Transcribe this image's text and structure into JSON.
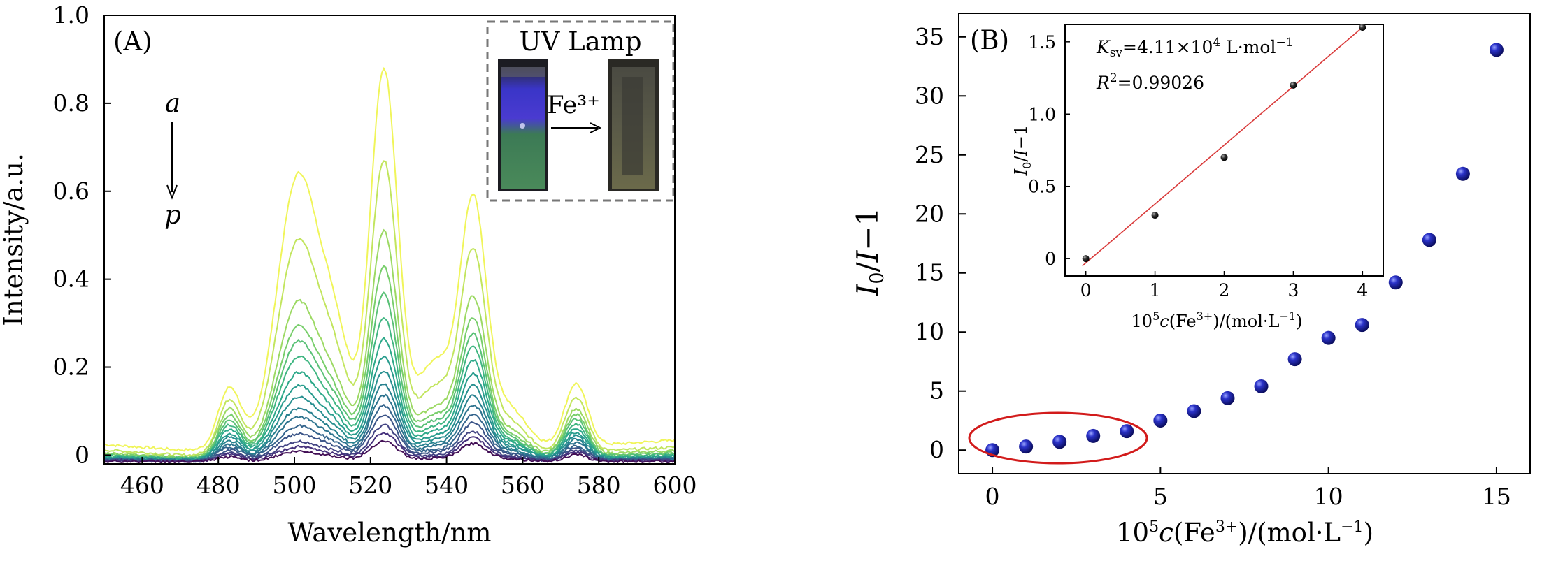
{
  "chart_data": [
    {
      "type": "line",
      "panel_label": "(A)",
      "xlabel": "Wavelength/nm",
      "ylabel": "Intensity/a.u.",
      "xlim": [
        450,
        600
      ],
      "ylim": [
        -0.02,
        1.0
      ],
      "x_ticks": [
        "460",
        "480",
        "500",
        "520",
        "540",
        "560",
        "580",
        "600"
      ],
      "x_tick_values": [
        460,
        480,
        500,
        520,
        540,
        560,
        580,
        600
      ],
      "y_ticks": [
        "0",
        "0.2",
        "0.4",
        "0.6",
        "0.8",
        "1.0"
      ],
      "y_tick_values": [
        0,
        0.2,
        0.4,
        0.6,
        0.8,
        1.0
      ],
      "series_order_label_top": "a",
      "series_order_label_bottom": "p",
      "series_colors": [
        "#f0f55a",
        "#c2e55e",
        "#9cd963",
        "#78ce6b",
        "#5ac177",
        "#40b682",
        "#2ea98a",
        "#289c8d",
        "#268f8f",
        "#28818f",
        "#2d738e",
        "#34648c",
        "#3c5588",
        "#434483",
        "#46317c",
        "#430f56"
      ],
      "peak_heights": [
        [
          0.152,
          0.632,
          0.873,
          0.548,
          0.155,
          0.012,
          0.024,
          0.034
        ],
        [
          0.125,
          0.485,
          0.665,
          0.435,
          0.125,
          0.0,
          0.012,
          0.018
        ],
        [
          0.105,
          0.345,
          0.505,
          0.335,
          0.1,
          -0.004,
          0.005,
          0.01
        ],
        [
          0.09,
          0.29,
          0.425,
          0.29,
          0.088,
          -0.006,
          0.002,
          0.006
        ],
        [
          0.078,
          0.255,
          0.365,
          0.255,
          0.078,
          -0.007,
          0.0,
          0.003
        ],
        [
          0.068,
          0.22,
          0.31,
          0.228,
          0.068,
          -0.008,
          -0.002,
          0.0
        ],
        [
          0.058,
          0.185,
          0.262,
          0.2,
          0.058,
          -0.009,
          -0.004,
          -0.002
        ],
        [
          0.048,
          0.155,
          0.222,
          0.172,
          0.05,
          -0.01,
          -0.006,
          -0.004
        ],
        [
          0.04,
          0.13,
          0.19,
          0.148,
          0.042,
          -0.011,
          -0.007,
          -0.006
        ],
        [
          0.032,
          0.105,
          0.16,
          0.125,
          0.034,
          -0.012,
          -0.008,
          -0.007
        ],
        [
          0.024,
          0.085,
          0.135,
          0.105,
          0.027,
          -0.012,
          -0.009,
          -0.008
        ],
        [
          0.018,
          0.065,
          0.112,
          0.085,
          0.02,
          -0.013,
          -0.01,
          -0.009
        ],
        [
          0.012,
          0.048,
          0.09,
          0.068,
          0.014,
          -0.013,
          -0.011,
          -0.01
        ],
        [
          0.006,
          0.03,
          0.068,
          0.05,
          0.009,
          -0.014,
          -0.012,
          -0.011
        ],
        [
          0.002,
          0.018,
          0.05,
          0.036,
          0.005,
          -0.014,
          -0.012,
          -0.012
        ],
        [
          -0.004,
          0.008,
          0.032,
          0.024,
          0.0,
          -0.015,
          -0.014,
          -0.014
        ]
      ],
      "inset": {
        "title": "UV Lamp",
        "arrow_label": "Fe³⁺"
      }
    },
    {
      "type": "scatter",
      "panel_label": "(B)",
      "xlabel": "10⁵c(Fe³⁺)/(mol·L⁻¹)",
      "ylabel": "I₀/I−1",
      "xlim": [
        -1,
        16
      ],
      "ylim": [
        -2,
        37
      ],
      "x_ticks": [
        "0",
        "5",
        "10",
        "15"
      ],
      "x_tick_values": [
        0,
        5,
        10,
        15
      ],
      "y_ticks": [
        "0",
        "5",
        "10",
        "15",
        "20",
        "25",
        "30",
        "35"
      ],
      "y_tick_values": [
        0,
        5,
        10,
        15,
        20,
        25,
        30,
        35
      ],
      "x": [
        0,
        1,
        2,
        3,
        4,
        5,
        6,
        7,
        8,
        9,
        10,
        11,
        12,
        13,
        14,
        15
      ],
      "y": [
        0.0,
        0.3,
        0.7,
        1.2,
        1.6,
        2.5,
        3.3,
        4.4,
        5.4,
        7.7,
        9.5,
        10.6,
        14.2,
        17.8,
        23.4,
        33.9
      ],
      "highlighted_points": [
        0,
        1,
        2,
        3,
        4
      ],
      "inset": {
        "type": "scatter",
        "xlabel": "10⁵c(Fe³⁺)/(mol·L⁻¹)",
        "ylabel": "I₀/I−1",
        "xlim": [
          -0.3,
          4.3
        ],
        "ylim": [
          -0.12,
          1.62
        ],
        "x_ticks": [
          "0",
          "1",
          "2",
          "3",
          "4"
        ],
        "x_tick_values": [
          0,
          1,
          2,
          3,
          4
        ],
        "y_ticks": [
          "0",
          "0.5",
          "1.0",
          "1.5"
        ],
        "y_tick_values": [
          0,
          0.5,
          1.0,
          1.5
        ],
        "x": [
          0,
          1,
          2,
          3,
          4
        ],
        "y": [
          0.0,
          0.3,
          0.7,
          1.2,
          1.6
        ],
        "fit_line": {
          "x": [
            -0.05,
            4.0
          ],
          "y": [
            -0.05,
            1.6
          ]
        },
        "annotation_ksv": "Ksv=4.11×10⁴ L·mol⁻¹",
        "annotation_r2": "R²=0.99026"
      }
    }
  ]
}
